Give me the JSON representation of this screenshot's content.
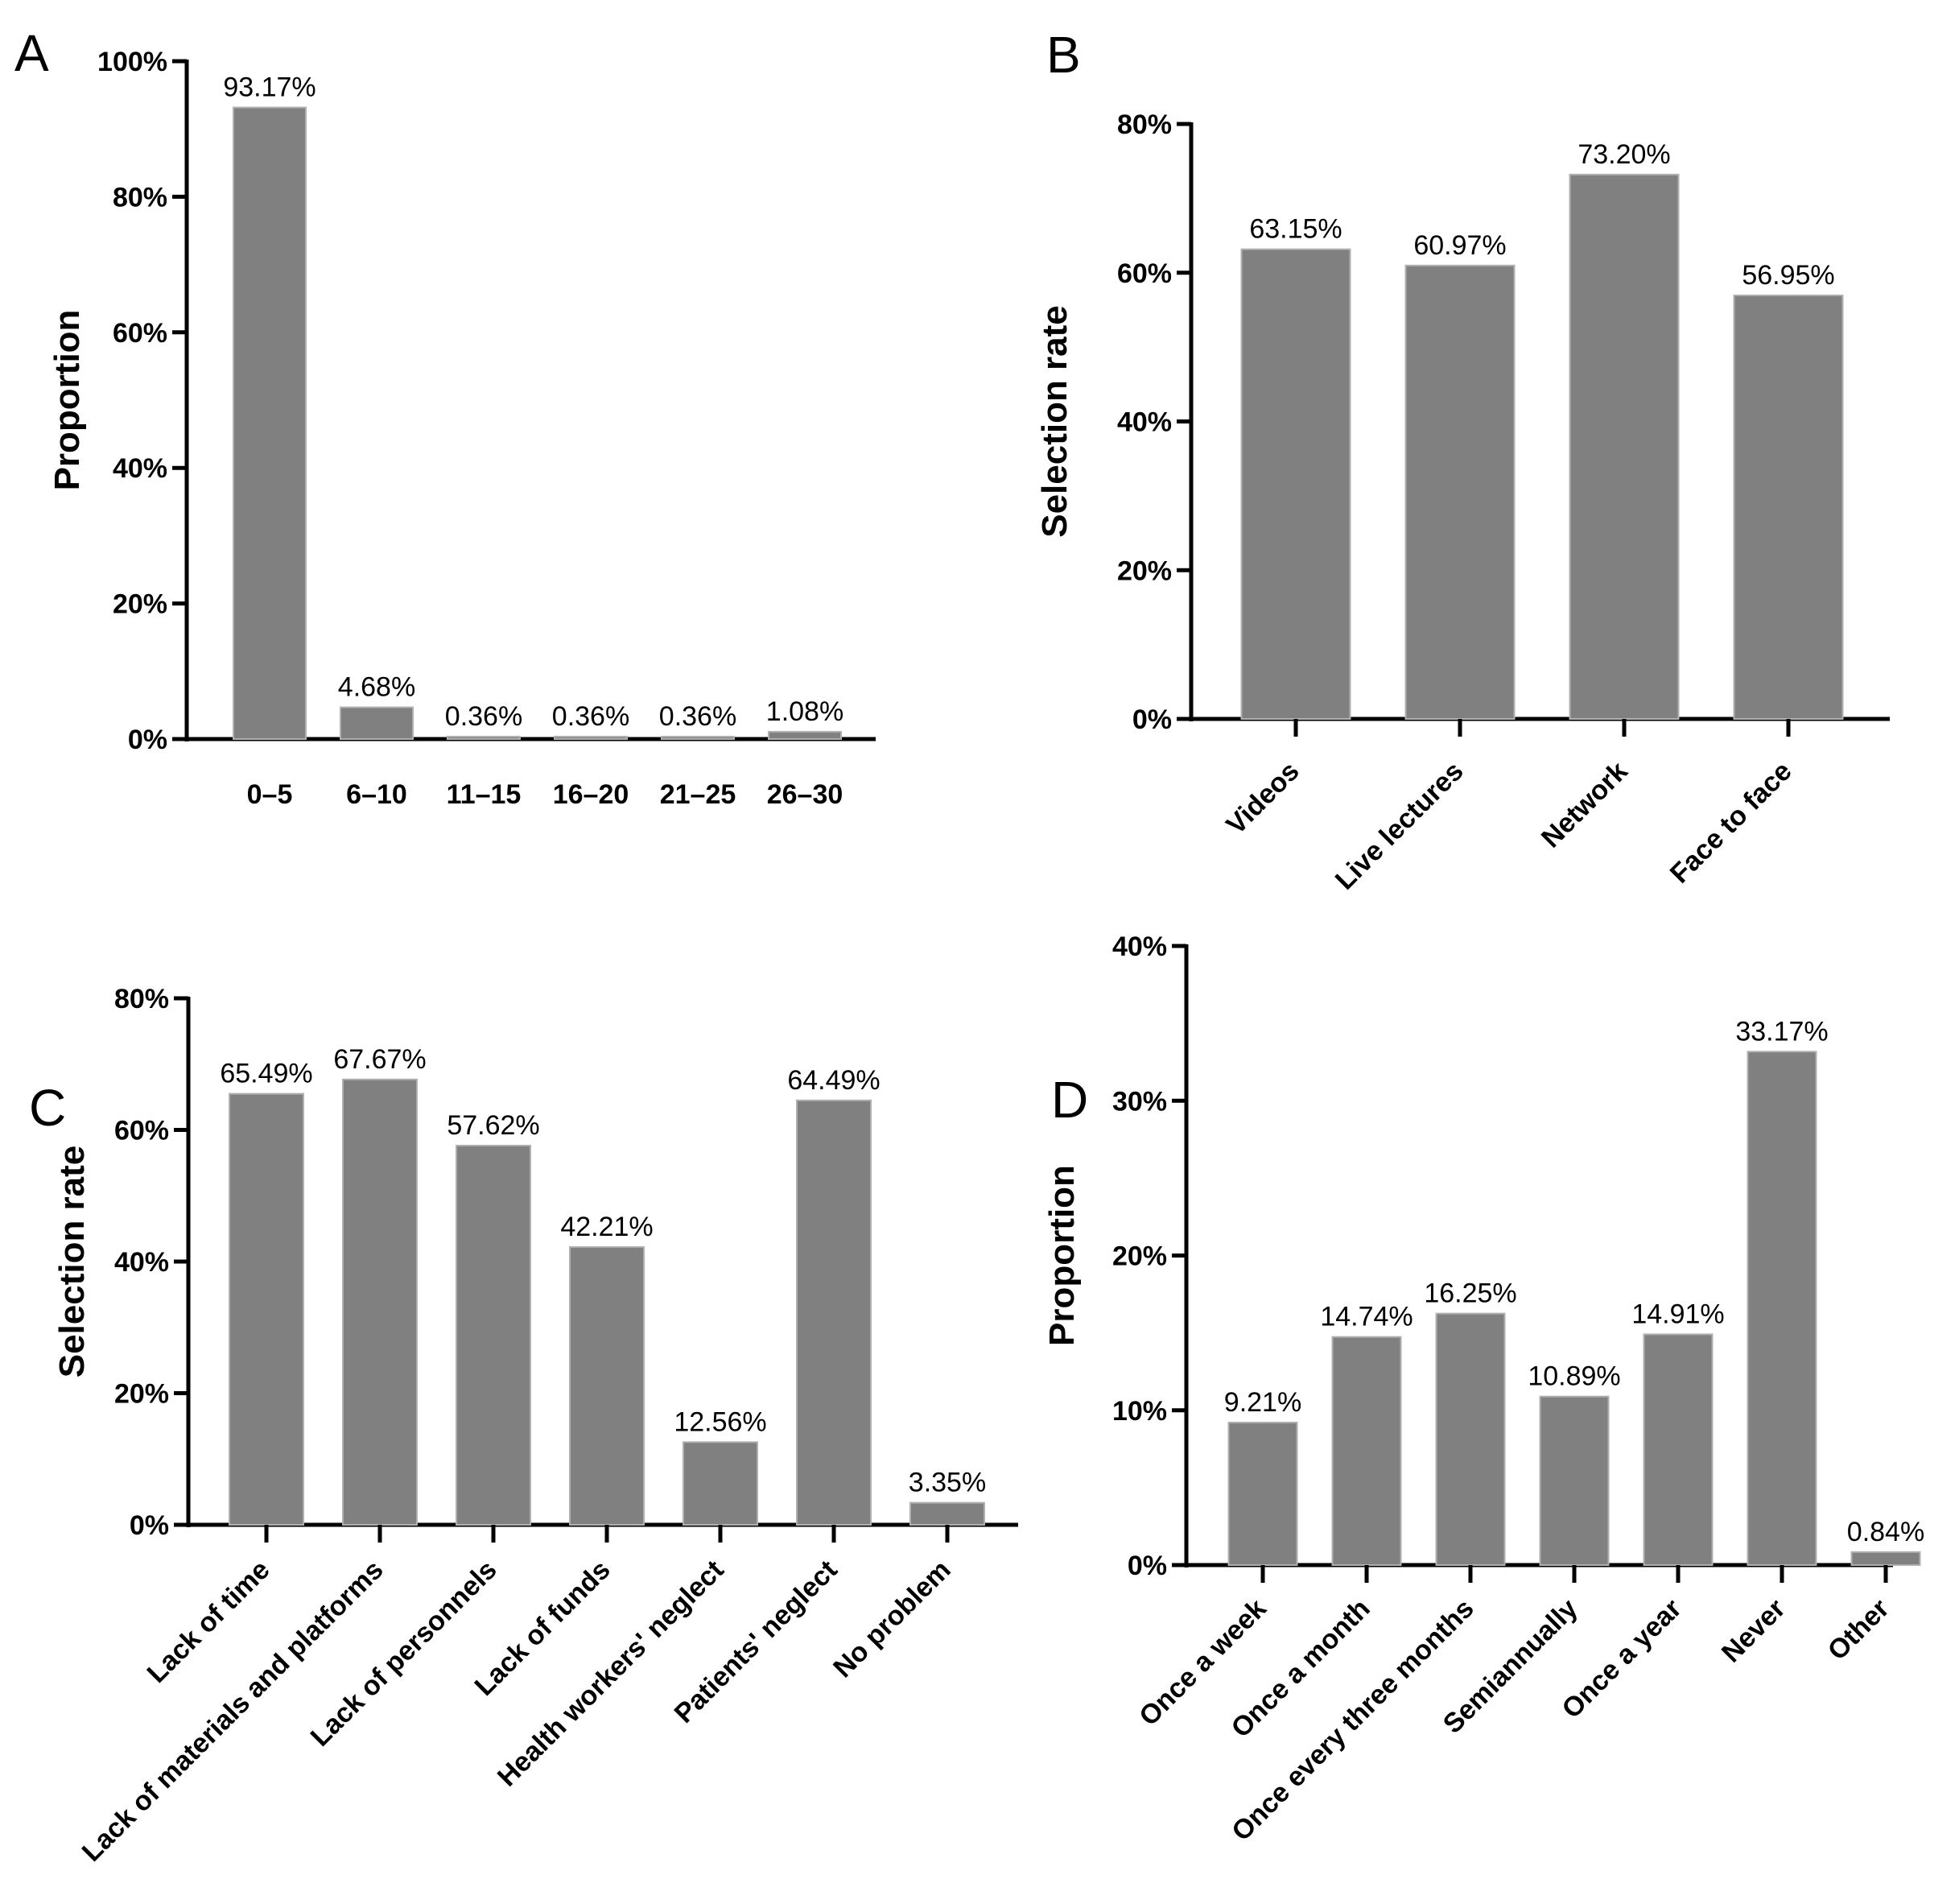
{
  "chart_data": [
    {
      "panel": "A",
      "type": "bar",
      "title": "",
      "xlabel": "",
      "ylabel": "Proportion",
      "ylim": [
        0,
        100
      ],
      "yticks": [
        "0%",
        "20%",
        "40%",
        "60%",
        "80%",
        "100%"
      ],
      "categories": [
        "0–5",
        "6–10",
        "11–15",
        "16–20",
        "21–25",
        "26–30"
      ],
      "values": [
        93.17,
        4.68,
        0.36,
        0.36,
        0.36,
        1.08
      ],
      "labels": [
        "93.17%",
        "4.68%",
        "0.36%",
        "0.36%",
        "0.36%",
        "1.08%"
      ],
      "bar_color": "#808080",
      "grid": false
    },
    {
      "panel": "B",
      "type": "bar",
      "title": "",
      "xlabel": "",
      "ylabel": "Selection rate",
      "ylim": [
        0,
        80
      ],
      "yticks": [
        "0%",
        "20%",
        "40%",
        "60%",
        "80%"
      ],
      "categories": [
        "Videos",
        "Live lectures",
        "Network",
        "Face to face"
      ],
      "values": [
        63.15,
        60.97,
        73.2,
        56.95
      ],
      "labels": [
        "63.15%",
        "60.97%",
        "73.20%",
        "56.95%"
      ],
      "bar_color": "#808080",
      "grid": false
    },
    {
      "panel": "C",
      "type": "bar",
      "title": "",
      "xlabel": "",
      "ylabel": "Selection rate",
      "ylim": [
        0,
        80
      ],
      "yticks": [
        "0%",
        "20%",
        "40%",
        "60%",
        "80%"
      ],
      "categories": [
        "Lack of time",
        "Lack of materials and platforms",
        "Lack of personnels",
        "Lack of funds",
        "Health workers' neglect",
        "Patients' neglect",
        "No problem"
      ],
      "values": [
        65.49,
        67.67,
        57.62,
        42.21,
        12.56,
        64.49,
        3.35
      ],
      "labels": [
        "65.49%",
        "67.67%",
        "57.62%",
        "42.21%",
        "12.56%",
        "64.49%",
        "3.35%"
      ],
      "bar_color": "#808080",
      "grid": false
    },
    {
      "panel": "D",
      "type": "bar",
      "title": "",
      "xlabel": "",
      "ylabel": "Proportion",
      "ylim": [
        0,
        40
      ],
      "yticks": [
        "0%",
        "10%",
        "20%",
        "30%",
        "40%"
      ],
      "categories": [
        "Once a week",
        "Once a month",
        "Once every three months",
        "Semiannually",
        "Once a year",
        "Never",
        "Other"
      ],
      "values": [
        9.21,
        14.74,
        16.25,
        10.89,
        14.91,
        33.17,
        0.84
      ],
      "labels": [
        "9.21%",
        "14.74%",
        "16.25%",
        "10.89%",
        "14.91%",
        "33.17%",
        "0.84%"
      ],
      "bar_color": "#808080",
      "grid": false
    }
  ]
}
